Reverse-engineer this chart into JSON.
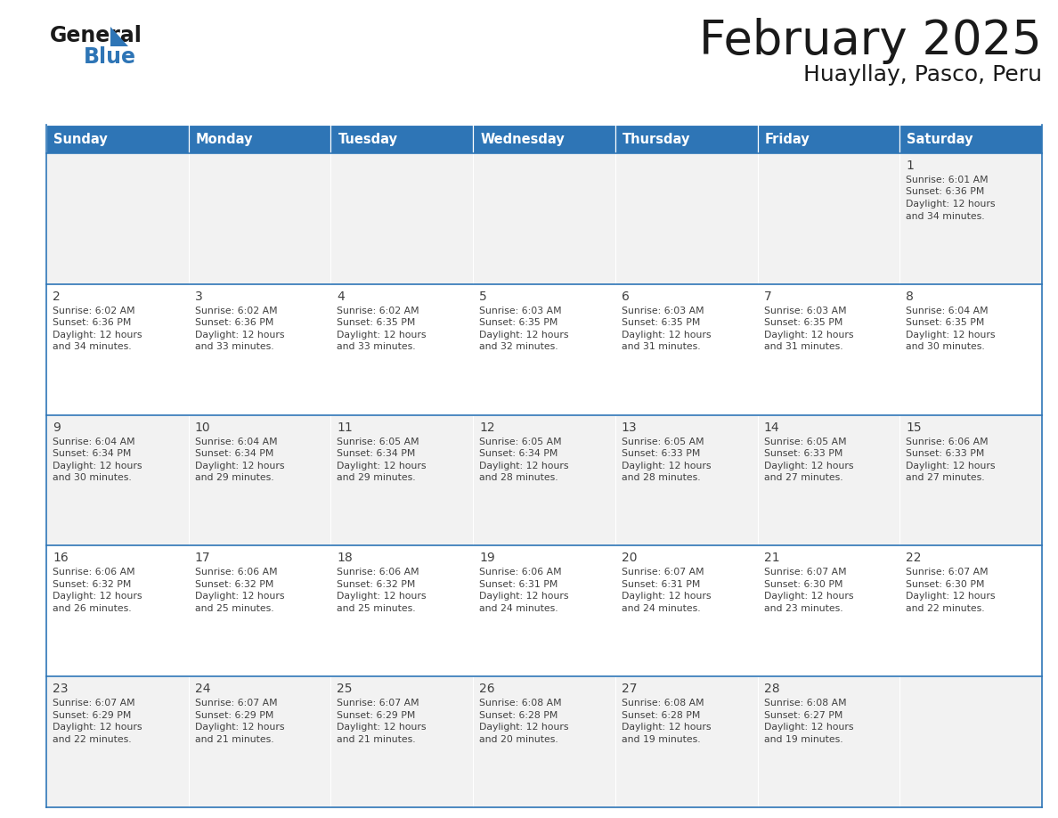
{
  "title": "February 2025",
  "subtitle": "Huayllay, Pasco, Peru",
  "header_color": "#2E75B6",
  "header_text_color": "#FFFFFF",
  "cell_bg_even": "#F2F2F2",
  "cell_bg_odd": "#FFFFFF",
  "border_color": "#2E75B6",
  "text_color": "#404040",
  "day_headers": [
    "Sunday",
    "Monday",
    "Tuesday",
    "Wednesday",
    "Thursday",
    "Friday",
    "Saturday"
  ],
  "days": [
    {
      "day": 1,
      "col": 6,
      "row": 0,
      "sunrise": "6:01 AM",
      "sunset": "6:36 PM",
      "daylight_line1": "12 hours",
      "daylight_line2": "and 34 minutes."
    },
    {
      "day": 2,
      "col": 0,
      "row": 1,
      "sunrise": "6:02 AM",
      "sunset": "6:36 PM",
      "daylight_line1": "12 hours",
      "daylight_line2": "and 34 minutes."
    },
    {
      "day": 3,
      "col": 1,
      "row": 1,
      "sunrise": "6:02 AM",
      "sunset": "6:36 PM",
      "daylight_line1": "12 hours",
      "daylight_line2": "and 33 minutes."
    },
    {
      "day": 4,
      "col": 2,
      "row": 1,
      "sunrise": "6:02 AM",
      "sunset": "6:35 PM",
      "daylight_line1": "12 hours",
      "daylight_line2": "and 33 minutes."
    },
    {
      "day": 5,
      "col": 3,
      "row": 1,
      "sunrise": "6:03 AM",
      "sunset": "6:35 PM",
      "daylight_line1": "12 hours",
      "daylight_line2": "and 32 minutes."
    },
    {
      "day": 6,
      "col": 4,
      "row": 1,
      "sunrise": "6:03 AM",
      "sunset": "6:35 PM",
      "daylight_line1": "12 hours",
      "daylight_line2": "and 31 minutes."
    },
    {
      "day": 7,
      "col": 5,
      "row": 1,
      "sunrise": "6:03 AM",
      "sunset": "6:35 PM",
      "daylight_line1": "12 hours",
      "daylight_line2": "and 31 minutes."
    },
    {
      "day": 8,
      "col": 6,
      "row": 1,
      "sunrise": "6:04 AM",
      "sunset": "6:35 PM",
      "daylight_line1": "12 hours",
      "daylight_line2": "and 30 minutes."
    },
    {
      "day": 9,
      "col": 0,
      "row": 2,
      "sunrise": "6:04 AM",
      "sunset": "6:34 PM",
      "daylight_line1": "12 hours",
      "daylight_line2": "and 30 minutes."
    },
    {
      "day": 10,
      "col": 1,
      "row": 2,
      "sunrise": "6:04 AM",
      "sunset": "6:34 PM",
      "daylight_line1": "12 hours",
      "daylight_line2": "and 29 minutes."
    },
    {
      "day": 11,
      "col": 2,
      "row": 2,
      "sunrise": "6:05 AM",
      "sunset": "6:34 PM",
      "daylight_line1": "12 hours",
      "daylight_line2": "and 29 minutes."
    },
    {
      "day": 12,
      "col": 3,
      "row": 2,
      "sunrise": "6:05 AM",
      "sunset": "6:34 PM",
      "daylight_line1": "12 hours",
      "daylight_line2": "and 28 minutes."
    },
    {
      "day": 13,
      "col": 4,
      "row": 2,
      "sunrise": "6:05 AM",
      "sunset": "6:33 PM",
      "daylight_line1": "12 hours",
      "daylight_line2": "and 28 minutes."
    },
    {
      "day": 14,
      "col": 5,
      "row": 2,
      "sunrise": "6:05 AM",
      "sunset": "6:33 PM",
      "daylight_line1": "12 hours",
      "daylight_line2": "and 27 minutes."
    },
    {
      "day": 15,
      "col": 6,
      "row": 2,
      "sunrise": "6:06 AM",
      "sunset": "6:33 PM",
      "daylight_line1": "12 hours",
      "daylight_line2": "and 27 minutes."
    },
    {
      "day": 16,
      "col": 0,
      "row": 3,
      "sunrise": "6:06 AM",
      "sunset": "6:32 PM",
      "daylight_line1": "12 hours",
      "daylight_line2": "and 26 minutes."
    },
    {
      "day": 17,
      "col": 1,
      "row": 3,
      "sunrise": "6:06 AM",
      "sunset": "6:32 PM",
      "daylight_line1": "12 hours",
      "daylight_line2": "and 25 minutes."
    },
    {
      "day": 18,
      "col": 2,
      "row": 3,
      "sunrise": "6:06 AM",
      "sunset": "6:32 PM",
      "daylight_line1": "12 hours",
      "daylight_line2": "and 25 minutes."
    },
    {
      "day": 19,
      "col": 3,
      "row": 3,
      "sunrise": "6:06 AM",
      "sunset": "6:31 PM",
      "daylight_line1": "12 hours",
      "daylight_line2": "and 24 minutes."
    },
    {
      "day": 20,
      "col": 4,
      "row": 3,
      "sunrise": "6:07 AM",
      "sunset": "6:31 PM",
      "daylight_line1": "12 hours",
      "daylight_line2": "and 24 minutes."
    },
    {
      "day": 21,
      "col": 5,
      "row": 3,
      "sunrise": "6:07 AM",
      "sunset": "6:30 PM",
      "daylight_line1": "12 hours",
      "daylight_line2": "and 23 minutes."
    },
    {
      "day": 22,
      "col": 6,
      "row": 3,
      "sunrise": "6:07 AM",
      "sunset": "6:30 PM",
      "daylight_line1": "12 hours",
      "daylight_line2": "and 22 minutes."
    },
    {
      "day": 23,
      "col": 0,
      "row": 4,
      "sunrise": "6:07 AM",
      "sunset": "6:29 PM",
      "daylight_line1": "12 hours",
      "daylight_line2": "and 22 minutes."
    },
    {
      "day": 24,
      "col": 1,
      "row": 4,
      "sunrise": "6:07 AM",
      "sunset": "6:29 PM",
      "daylight_line1": "12 hours",
      "daylight_line2": "and 21 minutes."
    },
    {
      "day": 25,
      "col": 2,
      "row": 4,
      "sunrise": "6:07 AM",
      "sunset": "6:29 PM",
      "daylight_line1": "12 hours",
      "daylight_line2": "and 21 minutes."
    },
    {
      "day": 26,
      "col": 3,
      "row": 4,
      "sunrise": "6:08 AM",
      "sunset": "6:28 PM",
      "daylight_line1": "12 hours",
      "daylight_line2": "and 20 minutes."
    },
    {
      "day": 27,
      "col": 4,
      "row": 4,
      "sunrise": "6:08 AM",
      "sunset": "6:28 PM",
      "daylight_line1": "12 hours",
      "daylight_line2": "and 19 minutes."
    },
    {
      "day": 28,
      "col": 5,
      "row": 4,
      "sunrise": "6:08 AM",
      "sunset": "6:27 PM",
      "daylight_line1": "12 hours",
      "daylight_line2": "and 19 minutes."
    }
  ],
  "num_rows": 5,
  "num_cols": 7,
  "fig_width": 11.88,
  "fig_height": 9.18,
  "dpi": 100
}
